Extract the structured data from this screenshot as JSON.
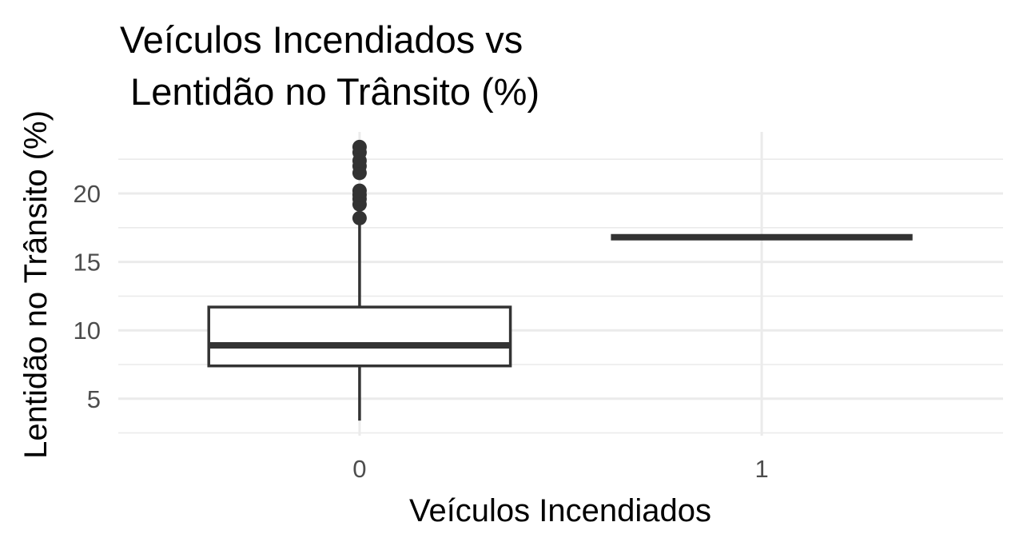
{
  "chart_data": {
    "type": "box",
    "title_lines": [
      "Veículos Incendiados vs",
      " Lentidão no Trânsito (%)"
    ],
    "xlabel": "Veículos Incendiados",
    "ylabel": "Lentidão no Trânsito (%)",
    "categories": [
      "0",
      "1"
    ],
    "yticks": [
      5,
      10,
      15,
      20
    ],
    "ylim": [
      2.3,
      24.5
    ],
    "grid": true,
    "boxes": [
      {
        "category": "0",
        "q1": 7.4,
        "median": 8.9,
        "q3": 11.7,
        "whisker_low": 3.4,
        "whisker_high": 18.2,
        "outliers": [
          18.2,
          19.2,
          19.6,
          19.9,
          20.2,
          21.5,
          22.0,
          22.4,
          23.0,
          23.4
        ]
      },
      {
        "category": "1",
        "q1": 16.8,
        "median": 16.8,
        "q3": 16.8,
        "whisker_low": 16.8,
        "whisker_high": 16.8,
        "outliers": []
      }
    ]
  }
}
